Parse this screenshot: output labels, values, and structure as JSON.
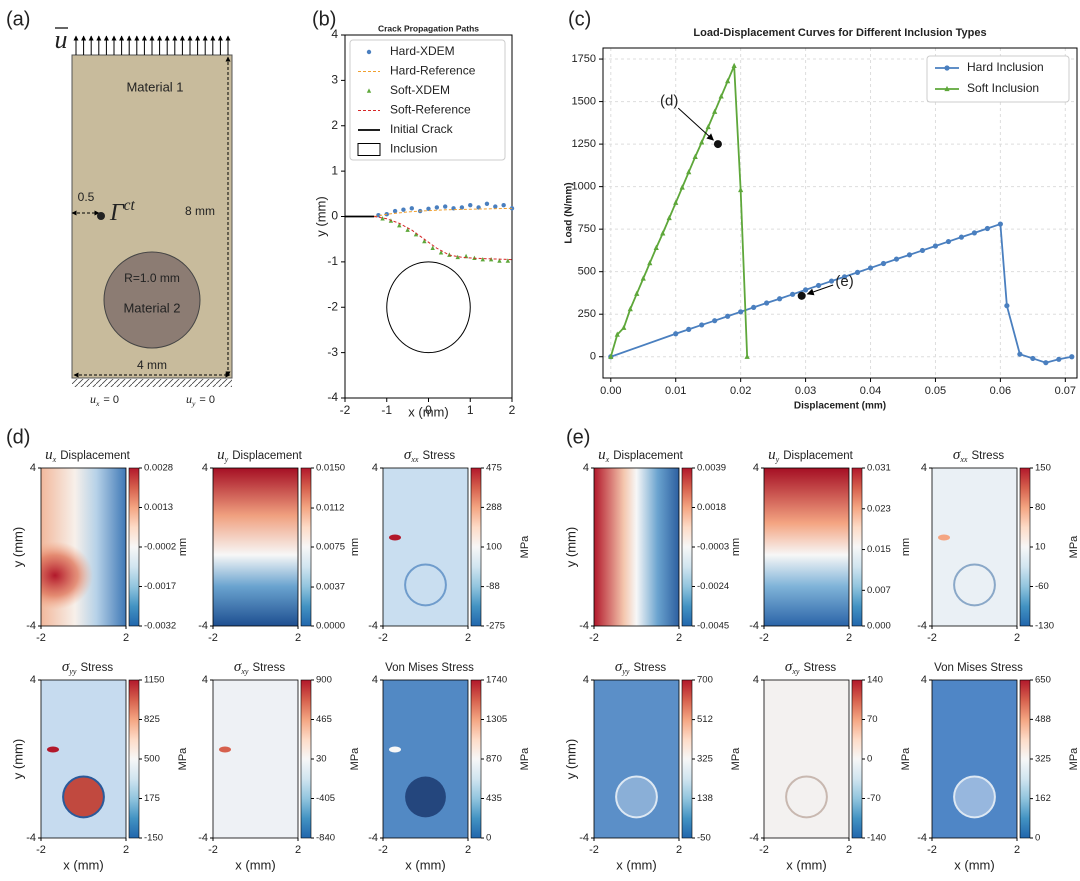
{
  "panel_labels": [
    "(a)",
    "(b)",
    "(c)",
    "(d)",
    "(e)"
  ],
  "diagram": {
    "load": "u",
    "material1": "Material 1",
    "offset": "0.5",
    "crack": {
      "symbol": "Γ",
      "sup": "ct"
    },
    "height": "8 mm",
    "radius": "R=1.0 mm",
    "material2": "Material 2",
    "width": "4 mm",
    "bc_left": {
      "symbol": "u",
      "sub": "x",
      "text": "= 0"
    },
    "bc_right": {
      "symbol": "u",
      "sub": "y",
      "text": "= 0"
    }
  },
  "chart_data": [
    {
      "type": "line",
      "title": "Crack Propagation Paths",
      "xlabel": "x (mm)",
      "ylabel": "y (mm)",
      "xlim": [
        -2,
        2
      ],
      "ylim": [
        -4,
        4
      ],
      "xticks": [
        -2,
        -1,
        0,
        1,
        2
      ],
      "yticks": [
        -4,
        -3,
        -2,
        -1,
        0,
        1,
        2,
        3,
        4
      ],
      "legend": "upper left",
      "series": [
        {
          "name": "Hard-XDEM",
          "color": "#4a7fbf",
          "marker": "o",
          "x": [
            -1.2,
            -1.0,
            -0.8,
            -0.6,
            -0.4,
            -0.2,
            0,
            0.2,
            0.4,
            0.6,
            0.8,
            1.0,
            1.2,
            1.4,
            1.6,
            1.8,
            2.0
          ],
          "values": [
            0.03,
            0.05,
            0.12,
            0.15,
            0.18,
            0.12,
            0.17,
            0.2,
            0.22,
            0.18,
            0.2,
            0.25,
            0.2,
            0.28,
            0.22,
            0.25,
            0.18
          ]
        },
        {
          "name": "Hard-Reference",
          "color": "#f0a030",
          "linestyle": "dashed",
          "x": [
            -1.3,
            -1,
            -0.5,
            0,
            0.5,
            1,
            1.5,
            2
          ],
          "values": [
            0,
            0.05,
            0.1,
            0.13,
            0.15,
            0.16,
            0.17,
            0.18
          ]
        },
        {
          "name": "Soft-XDEM",
          "color": "#5ea73a",
          "marker": "^",
          "x": [
            -1.1,
            -0.9,
            -0.7,
            -0.5,
            -0.3,
            -0.1,
            0.1,
            0.3,
            0.5,
            0.7,
            0.9,
            1.1,
            1.3,
            1.5,
            1.7,
            1.9
          ],
          "values": [
            -0.05,
            -0.1,
            -0.2,
            -0.3,
            -0.4,
            -0.55,
            -0.7,
            -0.8,
            -0.85,
            -0.9,
            -0.88,
            -0.92,
            -0.95,
            -0.95,
            -0.98,
            -0.98
          ]
        },
        {
          "name": "Soft-Reference",
          "color": "#d62728",
          "linestyle": "dashed",
          "x": [
            -1.3,
            -1,
            -0.7,
            -0.4,
            -0.1,
            0.2,
            0.5,
            0.8,
            1.1,
            1.4,
            1.7,
            2
          ],
          "values": [
            0,
            -0.05,
            -0.15,
            -0.3,
            -0.5,
            -0.7,
            -0.85,
            -0.9,
            -0.92,
            -0.93,
            -0.94,
            -0.95
          ]
        }
      ],
      "initial_crack": {
        "name": "Initial Crack",
        "color": "#000000",
        "x": [
          -2,
          -1.3
        ],
        "values": [
          0,
          0
        ]
      },
      "inclusion": {
        "name": "Inclusion",
        "color": "#000000",
        "center": [
          0,
          -2
        ],
        "radius": 1
      }
    },
    {
      "type": "line",
      "title": "Load-Displacement Curves for Different Inclusion Types",
      "xlabel": "Displacement (mm)",
      "ylabel": "Load (N/mm)",
      "xlim": [
        -0.0012,
        0.0718
      ],
      "ylim": [
        -125,
        1815
      ],
      "xticks": [
        {
          "value": 0,
          "label": "0.00"
        },
        0.01,
        0.02,
        0.03,
        0.04,
        0.05,
        0.06,
        0.07
      ],
      "yticks": [
        0,
        250,
        500,
        750,
        1000,
        1250,
        1500,
        1750
      ],
      "grid": true,
      "legend": "upper right",
      "series": [
        {
          "name": "Hard Inclusion",
          "color": "#4a7fbf",
          "marker": "o",
          "x": [
            0,
            0.01,
            0.012,
            0.014,
            0.016,
            0.018,
            0.02,
            0.022,
            0.024,
            0.026,
            0.028,
            0.03,
            0.032,
            0.034,
            0.036,
            0.038,
            0.04,
            0.042,
            0.044,
            0.046,
            0.048,
            0.05,
            0.052,
            0.054,
            0.056,
            0.058,
            0.06,
            0.061,
            0.063,
            0.065,
            0.067,
            0.069,
            0.071
          ],
          "values": [
            0,
            135,
            161,
            187,
            212,
            238,
            264,
            290,
            316,
            341,
            367,
            393,
            419,
            445,
            470,
            496,
            522,
            548,
            574,
            599,
            625,
            651,
            677,
            703,
            728,
            754,
            780,
            300,
            15,
            -10,
            -35,
            -15,
            0
          ]
        },
        {
          "name": "Soft Inclusion",
          "color": "#5ea73a",
          "marker": "^",
          "x": [
            0,
            0.001,
            0.002,
            0.003,
            0.004,
            0.005,
            0.006,
            0.007,
            0.008,
            0.009,
            0.01,
            0.011,
            0.012,
            0.013,
            0.014,
            0.015,
            0.016,
            0.017,
            0.018,
            0.019,
            0.02,
            0.021
          ],
          "values": [
            0,
            130,
            170,
            280,
            370,
            460,
            550,
            640,
            725,
            815,
            905,
            995,
            1085,
            1175,
            1260,
            1350,
            1440,
            1530,
            1620,
            1710,
            980,
            0
          ]
        }
      ],
      "annotations": [
        {
          "text": "(d)",
          "xy": [
            0.0165,
            1250
          ],
          "xytext": [
            0.009,
            1500
          ]
        },
        {
          "text": "(e)",
          "xy": [
            0.0294,
            358
          ],
          "xytext": [
            0.036,
            440
          ]
        }
      ]
    }
  ],
  "field_axes": {
    "xlim": [
      -2,
      2
    ],
    "ylim": [
      -4,
      4
    ],
    "xticks": [
      -2,
      2
    ],
    "yticks": [
      -4,
      4
    ],
    "xlabel": "x (mm)",
    "ylabel": "y (mm)"
  },
  "fields": [
    {
      "maps": [
        {
          "title": {
            "symbol": "u",
            "sub": "x",
            "text": "Displacement"
          },
          "unit": "mm",
          "clim": [
            -0.0032,
            0.0028
          ],
          "ticks": [
            0.0028,
            0.0013,
            -0.0002,
            -0.0017,
            -0.0032
          ]
        },
        {
          "title": {
            "symbol": "u",
            "sub": "y",
            "text": "Displacement"
          },
          "unit": "mm",
          "clim": [
            0,
            0.015
          ],
          "ticks": [
            {
              "value": 0.015,
              "label": "0.0150"
            },
            0.0112,
            0.0075,
            0.0037,
            {
              "value": 0,
              "label": "0.0000"
            }
          ]
        },
        {
          "title": {
            "symbol": "σ",
            "sub": "xx",
            "text": "Stress"
          },
          "unit": "MPa",
          "clim": [
            -275,
            475
          ],
          "ticks": [
            475,
            288,
            100,
            -88,
            -275
          ]
        },
        {
          "title": {
            "symbol": "σ",
            "sub": "yy",
            "text": "Stress"
          },
          "unit": "MPa",
          "clim": [
            -150,
            1150
          ],
          "ticks": [
            1150,
            825,
            500,
            175,
            -150
          ]
        },
        {
          "title": {
            "symbol": "σ",
            "sub": "xy",
            "text": "Stress"
          },
          "unit": "MPa",
          "clim": [
            -840,
            900
          ],
          "ticks": [
            900,
            465,
            30,
            -405,
            -840
          ]
        },
        {
          "title": {
            "text": "Von Mises Stress"
          },
          "unit": "MPa",
          "clim": [
            0,
            1740
          ],
          "ticks": [
            1740,
            1305,
            870,
            435,
            0
          ]
        }
      ]
    },
    {
      "maps": [
        {
          "title": {
            "symbol": "u",
            "sub": "x",
            "text": "Displacement"
          },
          "unit": "mm",
          "clim": [
            -0.0045,
            0.0039
          ],
          "ticks": [
            0.0039,
            0.0018,
            -0.0003,
            -0.0024,
            -0.0045
          ]
        },
        {
          "title": {
            "symbol": "u",
            "sub": "y",
            "text": "Displacement"
          },
          "unit": "mm",
          "clim": [
            0,
            0.031
          ],
          "ticks": [
            0.031,
            0.023,
            0.015,
            0.007,
            {
              "value": 0,
              "label": "0.000"
            }
          ]
        },
        {
          "title": {
            "symbol": "σ",
            "sub": "xx",
            "text": "Stress"
          },
          "unit": "MPa",
          "clim": [
            -130,
            150
          ],
          "ticks": [
            150,
            80,
            10,
            -60,
            -130
          ]
        },
        {
          "title": {
            "symbol": "σ",
            "sub": "yy",
            "text": "Stress"
          },
          "unit": "MPa",
          "clim": [
            -50,
            700
          ],
          "ticks": [
            700,
            512,
            325,
            138,
            -50
          ]
        },
        {
          "title": {
            "symbol": "σ",
            "sub": "xy",
            "text": "Stress"
          },
          "unit": "MPa",
          "clim": [
            -140,
            140
          ],
          "ticks": [
            140,
            70,
            0,
            -70,
            -140
          ]
        },
        {
          "title": {
            "text": "Von Mises Stress"
          },
          "unit": "MPa",
          "clim": [
            0,
            650
          ],
          "ticks": [
            650,
            488,
            325,
            162,
            0
          ]
        }
      ]
    }
  ]
}
